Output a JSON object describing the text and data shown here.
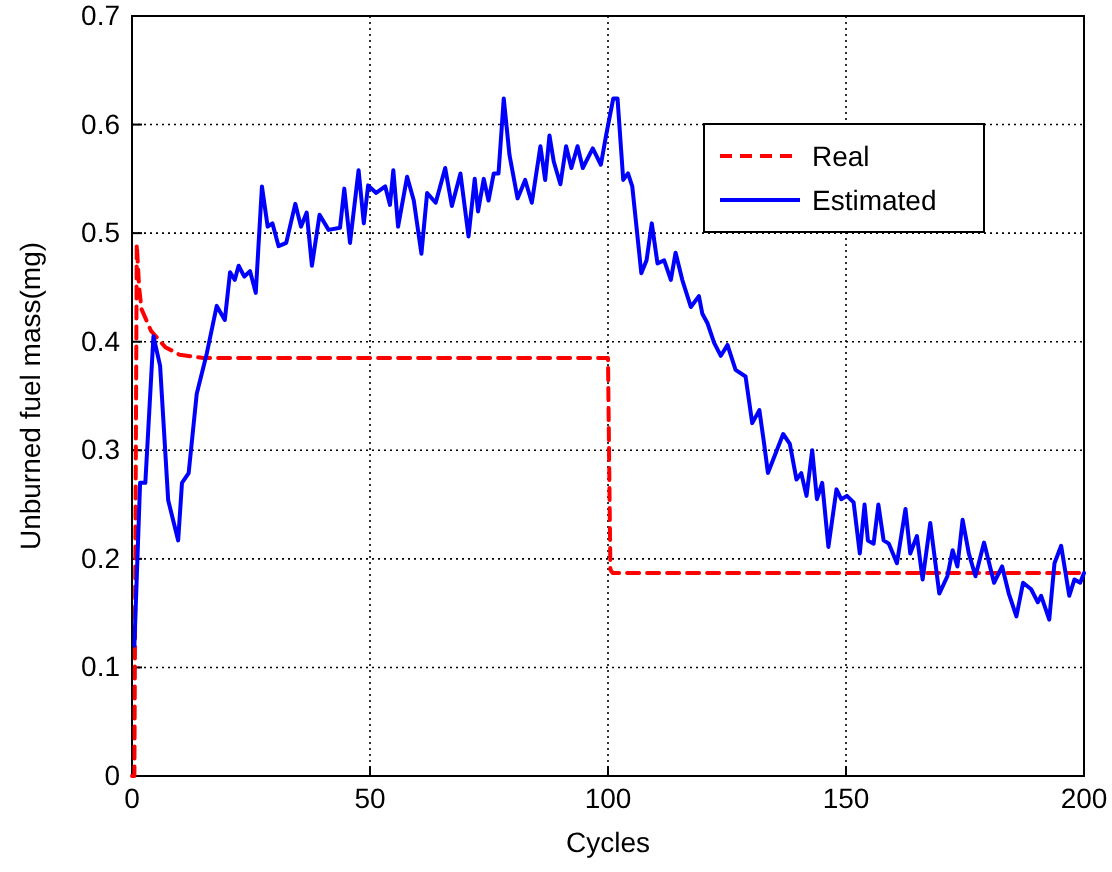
{
  "chart_data": {
    "type": "line",
    "xlabel": "Cycles",
    "ylabel": "Unburned fuel mass(mg)",
    "xlim": [
      0,
      200
    ],
    "xticks": [
      0,
      50,
      100,
      150,
      200
    ],
    "ylim": [
      0,
      0.7
    ],
    "yticks": [
      0,
      0.1,
      0.2,
      0.3,
      0.4,
      0.5,
      0.6,
      0.7
    ],
    "grid": true,
    "legend": "top right",
    "series": [
      {
        "name": "Real",
        "color": "#ff0000",
        "line_style": "dashed",
        "x": [
          0,
          0.5,
          1,
          1.5,
          2,
          4,
          7,
          10,
          15,
          100,
          100.5,
          101,
          200
        ],
        "values": [
          0,
          0,
          0.49,
          0.45,
          0.43,
          0.41,
          0.395,
          0.388,
          0.385,
          0.385,
          0.19,
          0.187,
          0.187
        ]
      },
      {
        "name": "Estimated",
        "color": "#0000ff",
        "line_style": "solid",
        "x": [
          0.5,
          1.7,
          2.8,
          4.5,
          5.9,
          7.6,
          9.7,
          10.5,
          11.9,
          13.6,
          15.7,
          17.8,
          19.5,
          20.6,
          21.6,
          22.4,
          23.6,
          24.8,
          26,
          27.3,
          28.5,
          29.5,
          30.8,
          32.4,
          34.3,
          35.5,
          36.7,
          37.8,
          39.4,
          41.3,
          43.7,
          44.6,
          45.8,
          47.6,
          48.7,
          49.6,
          51.3,
          53.2,
          54.2,
          54.9,
          55.9,
          57.8,
          59.2,
          60.8,
          62,
          63.8,
          65.8,
          67.2,
          69,
          70.7,
          72,
          72.7,
          73.9,
          74.9,
          76,
          77,
          78.1,
          79.3,
          81,
          82.6,
          84,
          85.8,
          86.8,
          87.7,
          88.6,
          90,
          91.2,
          92.3,
          93.6,
          94.7,
          96.8,
          98.5,
          99.6,
          101.1,
          102,
          103.2,
          104.2,
          105.1,
          107,
          108.1,
          109.2,
          110.4,
          111.8,
          113.2,
          114.2,
          115.6,
          117.4,
          119.1,
          119.8,
          120.9,
          122.3,
          123.7,
          125.1,
          126.8,
          128.9,
          130.3,
          131.8,
          132.8,
          133.6,
          136.8,
          138.2,
          139.6,
          140.6,
          141.7,
          142.9,
          143.9,
          145,
          146.3,
          148,
          149,
          150.2,
          151.6,
          152.9,
          153.9,
          154.6,
          155.8,
          156.8,
          157.9,
          159,
          160.7,
          162.5,
          163.5,
          164.9,
          166.1,
          167.7,
          169.6,
          171.3,
          172.4,
          173.4,
          174.5,
          175.8,
          177.2,
          179,
          181.1,
          182.8,
          184.2,
          185.8,
          187.2,
          188.9,
          190.3,
          191,
          192.7,
          193.8,
          195.2,
          196.9,
          198,
          199.2,
          200
        ],
        "values": [
          0.12,
          0.27,
          0.27,
          0.405,
          0.378,
          0.254,
          0.217,
          0.27,
          0.279,
          0.352,
          0.389,
          0.433,
          0.42,
          0.464,
          0.457,
          0.47,
          0.46,
          0.465,
          0.445,
          0.543,
          0.506,
          0.509,
          0.488,
          0.491,
          0.527,
          0.506,
          0.519,
          0.47,
          0.517,
          0.503,
          0.505,
          0.541,
          0.491,
          0.558,
          0.509,
          0.544,
          0.537,
          0.543,
          0.526,
          0.558,
          0.506,
          0.552,
          0.53,
          0.481,
          0.537,
          0.528,
          0.56,
          0.525,
          0.555,
          0.497,
          0.55,
          0.52,
          0.55,
          0.53,
          0.555,
          0.555,
          0.624,
          0.572,
          0.532,
          0.549,
          0.528,
          0.58,
          0.549,
          0.59,
          0.566,
          0.545,
          0.58,
          0.56,
          0.58,
          0.56,
          0.578,
          0.563,
          0.59,
          0.624,
          0.624,
          0.549,
          0.555,
          0.543,
          0.463,
          0.475,
          0.509,
          0.472,
          0.475,
          0.457,
          0.482,
          0.457,
          0.432,
          0.442,
          0.426,
          0.417,
          0.399,
          0.387,
          0.397,
          0.374,
          0.368,
          0.325,
          0.337,
          0.306,
          0.279,
          0.315,
          0.306,
          0.273,
          0.279,
          0.258,
          0.3,
          0.255,
          0.27,
          0.211,
          0.264,
          0.255,
          0.258,
          0.252,
          0.205,
          0.25,
          0.217,
          0.214,
          0.25,
          0.217,
          0.214,
          0.196,
          0.246,
          0.205,
          0.221,
          0.181,
          0.233,
          0.168,
          0.184,
          0.208,
          0.193,
          0.236,
          0.205,
          0.184,
          0.215,
          0.178,
          0.193,
          0.168,
          0.147,
          0.178,
          0.172,
          0.16,
          0.166,
          0.144,
          0.196,
          0.212,
          0.166,
          0.181,
          0.178,
          0.187
        ]
      }
    ]
  }
}
